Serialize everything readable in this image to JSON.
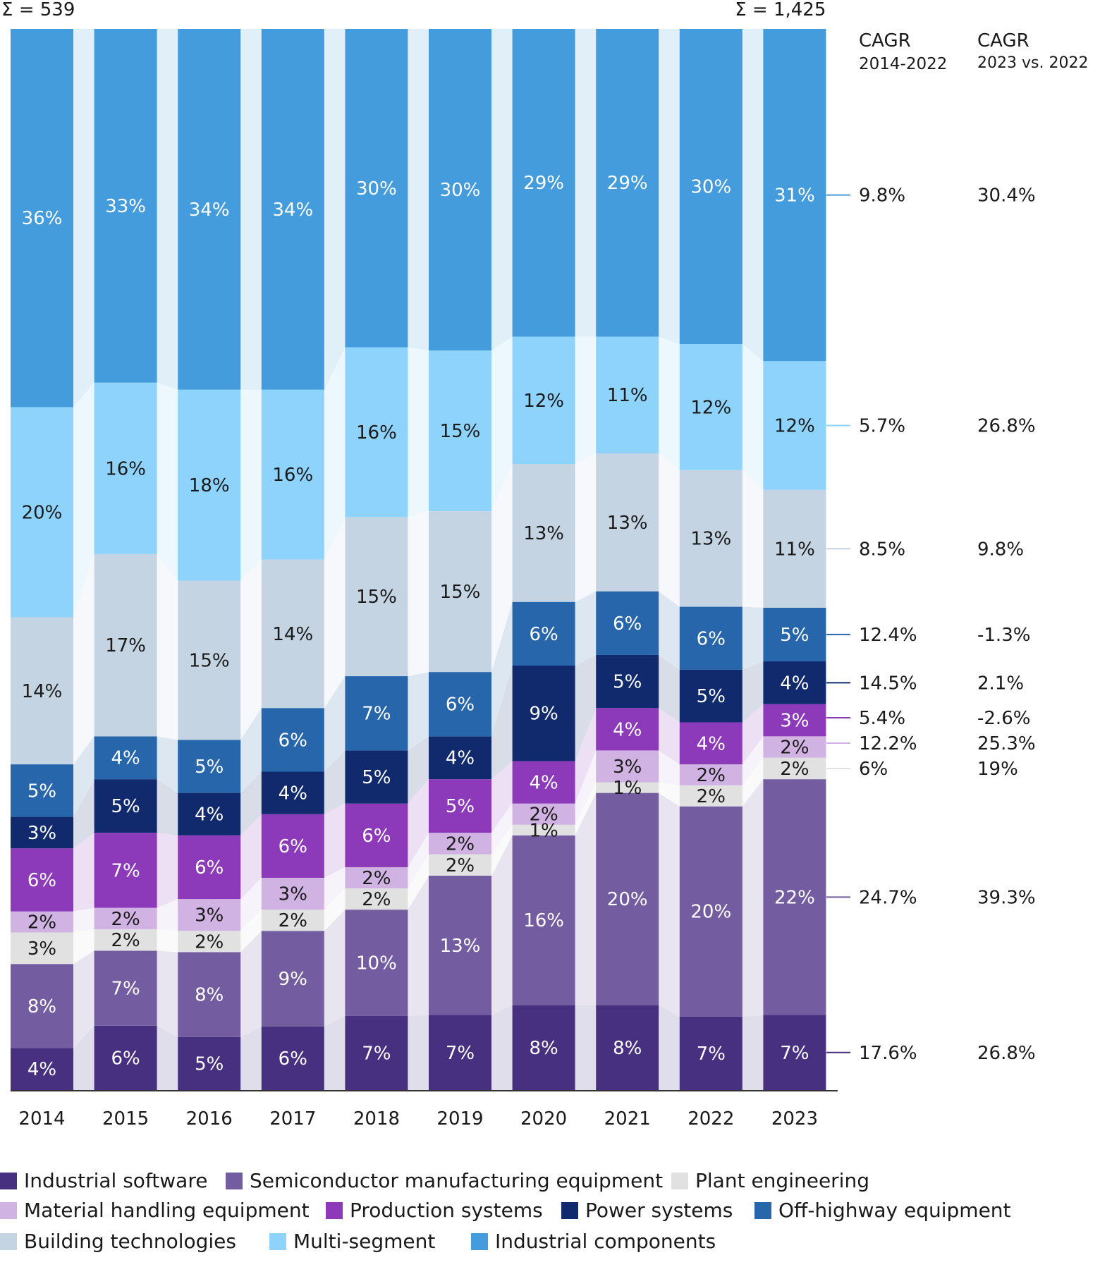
{
  "chart_data": {
    "type": "bar",
    "stacked": true,
    "categories": [
      "2014",
      "2015",
      "2016",
      "2017",
      "2018",
      "2019",
      "2020",
      "2021",
      "2022",
      "2023"
    ],
    "total_first_label": "Σ = 539",
    "total_last_label": "Σ = 1,425",
    "cagr_header_1": [
      "CAGR",
      "2014-2022"
    ],
    "cagr_header_2": [
      "CAGR",
      "2023 vs. 2022"
    ],
    "series": [
      {
        "name": "Industrial software",
        "color": "#46307f",
        "values": [
          4,
          6,
          5,
          6,
          7,
          7,
          8,
          8,
          7,
          7
        ],
        "labels": [
          "4%",
          "6%",
          "5%",
          "6%",
          "7%",
          "7%",
          "8%",
          "8%",
          "7%",
          "7%"
        ],
        "cagr_1": "17.6%",
        "cagr_2": "26.8%"
      },
      {
        "name": "Semiconductor manufacturing equipment",
        "color": "#735c9f",
        "values": [
          8,
          7,
          8,
          9,
          10,
          13,
          16,
          20,
          20,
          22
        ],
        "labels": [
          "8%",
          "7%",
          "8%",
          "9%",
          "10%",
          "13%",
          "16%",
          "20%",
          "20%",
          "22%"
        ],
        "cagr_1": "24.7%",
        "cagr_2": "39.3%"
      },
      {
        "name": "Plant engineering",
        "color": "#e1e1e1",
        "values": [
          3,
          2,
          2,
          2,
          2,
          2,
          1,
          1,
          2,
          2
        ],
        "labels": [
          "3%",
          "2%",
          "2%",
          "2%",
          "2%",
          "2%",
          "1%",
          "1%",
          "2%",
          "2%"
        ],
        "cagr_1": "6%",
        "cagr_2": "19%"
      },
      {
        "name": "Material handling equipment",
        "color": "#d0b3e3",
        "values": [
          2,
          2,
          3,
          3,
          2,
          2,
          2,
          3,
          2,
          2
        ],
        "labels": [
          "2%",
          "2%",
          "3%",
          "3%",
          "2%",
          "2%",
          "2%",
          "3%",
          "2%",
          "2%"
        ],
        "cagr_1": "12.2%",
        "cagr_2": "25.3%"
      },
      {
        "name": "Production systems",
        "color": "#8c3ab9",
        "values": [
          6,
          7,
          6,
          6,
          6,
          5,
          4,
          4,
          4,
          3
        ],
        "labels": [
          "6%",
          "7%",
          "6%",
          "6%",
          "6%",
          "5%",
          "4%",
          "4%",
          "4%",
          "3%"
        ],
        "cagr_1": "5.4%",
        "cagr_2": "-2.6%"
      },
      {
        "name": "Power systems",
        "color": "#102a6d",
        "values": [
          3,
          5,
          4,
          4,
          5,
          4,
          9,
          5,
          5,
          4
        ],
        "labels": [
          "3%",
          "5%",
          "4%",
          "4%",
          "5%",
          "4%",
          "9%",
          "5%",
          "5%",
          "4%"
        ],
        "cagr_1": "14.5%",
        "cagr_2": "2.1%"
      },
      {
        "name": "Off-highway equipment",
        "color": "#2766ab",
        "values": [
          5,
          4,
          5,
          6,
          7,
          6,
          6,
          6,
          6,
          5
        ],
        "labels": [
          "5%",
          "4%",
          "5%",
          "6%",
          "7%",
          "6%",
          "6%",
          "6%",
          "6%",
          "5%"
        ],
        "cagr_1": "12.4%",
        "cagr_2": "-1.3%"
      },
      {
        "name": "Building technologies",
        "color": "#c5d4e3",
        "values": [
          14,
          17,
          15,
          14,
          15,
          15,
          13,
          13,
          13,
          11
        ],
        "labels": [
          "14%",
          "17%",
          "15%",
          "14%",
          "15%",
          "15%",
          "13%",
          "13%",
          "13%",
          "11%"
        ],
        "cagr_1": "8.5%",
        "cagr_2": "9.8%"
      },
      {
        "name": "Multi-segment",
        "color": "#8ed3fb",
        "values": [
          20,
          16,
          18,
          16,
          16,
          15,
          12,
          11,
          12,
          12
        ],
        "labels": [
          "20%",
          "16%",
          "18%",
          "16%",
          "16%",
          "15%",
          "12%",
          "11%",
          "12%",
          "12%"
        ],
        "cagr_1": "5.7%",
        "cagr_2": "26.8%"
      },
      {
        "name": "Industrial components",
        "color": "#449cdc",
        "values": [
          36,
          33,
          34,
          34,
          30,
          30,
          29,
          29,
          30,
          31
        ],
        "labels": [
          "36%",
          "33%",
          "34%",
          "34%",
          "30%",
          "30%",
          "29%",
          "29%",
          "30%",
          "31%"
        ],
        "cagr_1": "9.8%",
        "cagr_2": "30.4%"
      }
    ],
    "legend_position": "bottom"
  }
}
